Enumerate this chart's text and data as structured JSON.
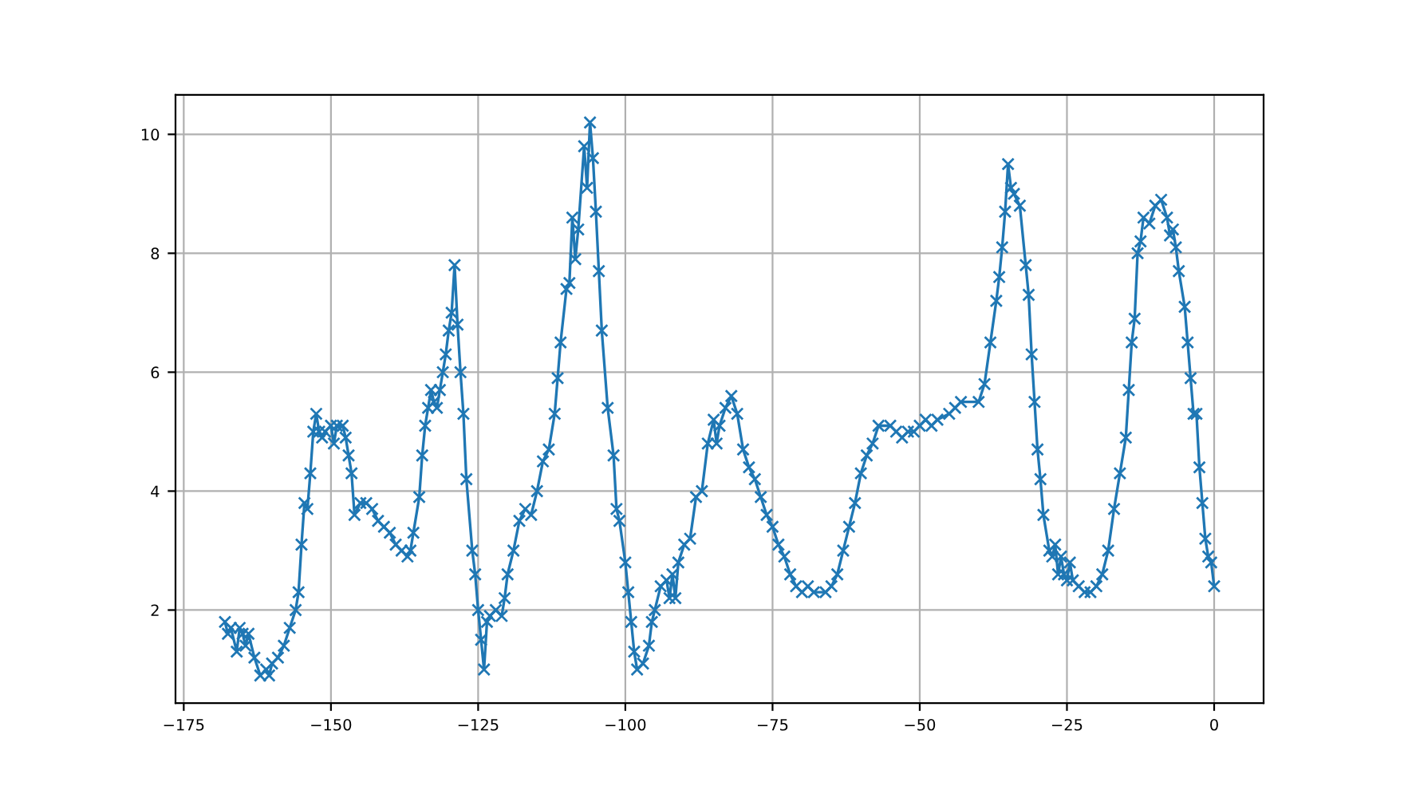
{
  "chart_data": {
    "type": "line",
    "marker": "cross",
    "line_style": "solid",
    "grid": true,
    "xlim": [
      -176.4,
      8.4
    ],
    "ylim": [
      0.435,
      10.665
    ],
    "xticks": [
      {
        "value": -175,
        "label": "−175"
      },
      {
        "value": -150,
        "label": "−150"
      },
      {
        "value": -125,
        "label": "−125"
      },
      {
        "value": -100,
        "label": "−100"
      },
      {
        "value": -75,
        "label": "−75"
      },
      {
        "value": -50,
        "label": "−50"
      },
      {
        "value": -25,
        "label": "−25"
      },
      0
    ],
    "yticks": [
      2,
      4,
      6,
      8,
      10
    ],
    "series": [
      {
        "color": "#1f77b4",
        "x": [
          -168,
          -167.5,
          -167,
          -166,
          -165.5,
          -165,
          -164.5,
          -164,
          -163,
          -162,
          -161,
          -160.5,
          -160,
          -159,
          -158,
          -157,
          -156,
          -155.5,
          -155,
          -154.5,
          -154,
          -153.5,
          -153,
          -152.5,
          -152,
          -151.5,
          -151,
          -150,
          -149.5,
          -149,
          -148,
          -147.5,
          -147,
          -146.5,
          -146,
          -145,
          -144,
          -143,
          -142,
          -141,
          -140,
          -139,
          -138,
          -137,
          -136.5,
          -136,
          -135,
          -134.5,
          -134,
          -133.5,
          -133,
          -132.5,
          -132,
          -131.5,
          -131,
          -130.5,
          -130,
          -129.5,
          -129,
          -128.5,
          -128,
          -127.5,
          -127,
          -126,
          -125.5,
          -125,
          -124.5,
          -124,
          -123.5,
          -123,
          -122,
          -121,
          -120.5,
          -120,
          -119,
          -118,
          -117,
          -116,
          -115,
          -114,
          -113,
          -112,
          -111.5,
          -111,
          -110,
          -109.5,
          -109,
          -108.5,
          -108,
          -107,
          -106.5,
          -106,
          -105.5,
          -105,
          -104.5,
          -104,
          -103,
          -102,
          -101.5,
          -101,
          -100,
          -99.5,
          -99,
          -98.5,
          -98,
          -97,
          -96,
          -95.5,
          -95,
          -94,
          -93,
          -92.5,
          -92,
          -91.5,
          -91,
          -90,
          -89,
          -88,
          -87,
          -86,
          -85,
          -84.5,
          -84,
          -83,
          -82,
          -81,
          -80,
          -79,
          -78,
          -77,
          -76,
          -75,
          -74,
          -73,
          -72,
          -71,
          -70,
          -69,
          -68,
          -66,
          -65,
          -64,
          -63,
          -62,
          -61,
          -60,
          -59,
          -58,
          -57,
          -55,
          -54,
          -53,
          -52,
          -51,
          -50,
          -49,
          -48,
          -47,
          -45,
          -44,
          -43,
          -40,
          -39,
          -38,
          -37,
          -36.5,
          -36,
          -35.5,
          -35,
          -34.5,
          -34,
          -33,
          -32,
          -31.5,
          -31,
          -30.5,
          -30,
          -29.5,
          -29,
          -28,
          -27.5,
          -27,
          -26.5,
          -26,
          -25.5,
          -25,
          -24.5,
          -24,
          -23,
          -22,
          -21,
          -20,
          -19,
          -18,
          -17,
          -16,
          -15,
          -14.5,
          -14,
          -13.5,
          -13,
          -12.5,
          -12,
          -11,
          -10,
          -9,
          -8,
          -7.5,
          -7,
          -6.5,
          -6,
          -5,
          -4.5,
          -4,
          -3.5,
          -3,
          -2.5,
          -2,
          -1.5,
          -1,
          -0.5,
          0
        ],
        "values": [
          1.8,
          1.6,
          1.7,
          1.3,
          1.7,
          1.6,
          1.4,
          1.6,
          1.2,
          0.9,
          1.0,
          0.9,
          1.1,
          1.2,
          1.4,
          1.7,
          2.0,
          2.3,
          3.1,
          3.8,
          3.7,
          4.3,
          5.0,
          5.3,
          5.0,
          4.9,
          5.0,
          5.1,
          4.8,
          5.1,
          5.1,
          4.9,
          4.6,
          4.3,
          3.6,
          3.8,
          3.8,
          3.7,
          3.5,
          3.4,
          3.3,
          3.1,
          3.0,
          2.9,
          3.0,
          3.3,
          3.9,
          4.6,
          5.1,
          5.4,
          5.7,
          5.5,
          5.4,
          5.7,
          6.0,
          6.3,
          6.7,
          7.0,
          7.8,
          6.8,
          6.0,
          5.3,
          4.2,
          3.0,
          2.6,
          2.0,
          1.5,
          1.0,
          1.8,
          1.9,
          2.0,
          1.9,
          2.2,
          2.6,
          3.0,
          3.5,
          3.7,
          3.6,
          4.0,
          4.5,
          4.7,
          5.3,
          5.9,
          6.5,
          7.4,
          7.5,
          8.6,
          7.9,
          8.4,
          9.8,
          9.1,
          10.2,
          9.6,
          8.7,
          7.7,
          6.7,
          5.4,
          4.6,
          3.7,
          3.5,
          2.8,
          2.3,
          1.8,
          1.3,
          1.0,
          1.1,
          1.4,
          1.8,
          2.0,
          2.4,
          2.5,
          2.2,
          2.6,
          2.2,
          2.8,
          3.1,
          3.2,
          3.9,
          4.0,
          4.8,
          5.2,
          4.8,
          5.1,
          5.4,
          5.6,
          5.3,
          4.7,
          4.4,
          4.2,
          3.9,
          3.6,
          3.4,
          3.1,
          2.9,
          2.6,
          2.4,
          2.3,
          2.4,
          2.3,
          2.3,
          2.4,
          2.6,
          3.0,
          3.4,
          3.8,
          4.3,
          4.6,
          4.8,
          5.1,
          5.1,
          5.0,
          4.9,
          5.0,
          5.0,
          5.1,
          5.2,
          5.1,
          5.2,
          5.3,
          5.4,
          5.5,
          5.5,
          5.8,
          6.5,
          7.2,
          7.6,
          8.1,
          8.7,
          9.5,
          9.1,
          9.0,
          8.8,
          7.8,
          7.3,
          6.3,
          5.5,
          4.7,
          4.2,
          3.6,
          3.0,
          2.9,
          3.1,
          2.6,
          2.9,
          2.6,
          2.5,
          2.8,
          2.5,
          2.4,
          2.3,
          2.3,
          2.4,
          2.6,
          3.0,
          3.7,
          4.3,
          4.9,
          5.7,
          6.5,
          6.9,
          8.0,
          8.2,
          8.6,
          8.5,
          8.8,
          8.9,
          8.6,
          8.3,
          8.4,
          8.1,
          7.7,
          7.1,
          6.5,
          5.9,
          5.3,
          5.3,
          4.4,
          3.8,
          3.2,
          2.9,
          2.8,
          2.4
        ]
      }
    ]
  }
}
